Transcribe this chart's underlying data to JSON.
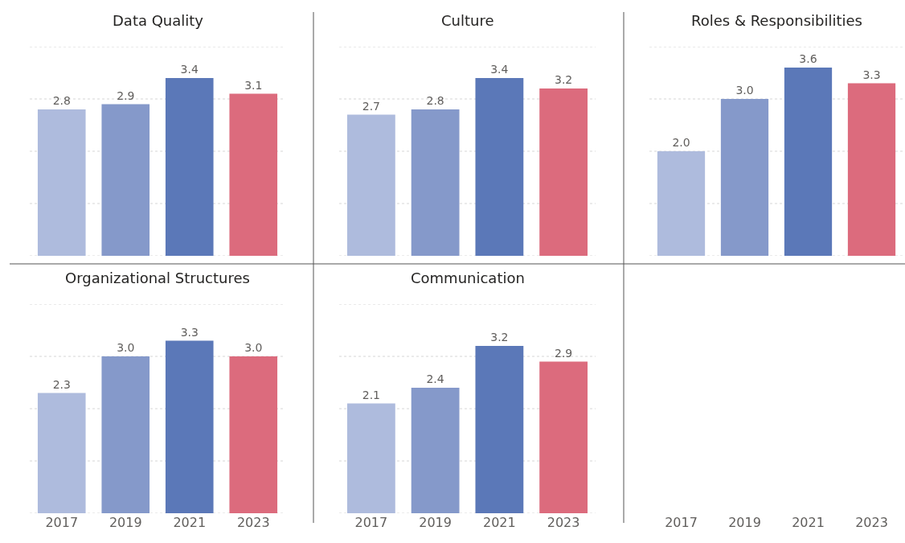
{
  "chart_data": [
    {
      "type": "bar",
      "title": "Data Quality",
      "categories": [
        "2017",
        "2019",
        "2021",
        "2023"
      ],
      "values": [
        2.8,
        2.9,
        3.4,
        3.1
      ],
      "value_labels": [
        "2.8",
        "2.9",
        "3.4",
        "3.1"
      ],
      "colors": [
        "#aebbdd",
        "#8599ca",
        "#5b78b8",
        "#dc6b7d"
      ],
      "ylim": [
        0,
        4
      ],
      "yticks": [
        {
          "value": 0,
          "label": null
        },
        {
          "value": 1,
          "label": null
        },
        {
          "value": 2,
          "label": null
        },
        {
          "value": 3,
          "label": null
        },
        {
          "value": 4,
          "label": null
        }
      ],
      "grid": "y",
      "tick_labels": false
    },
    {
      "type": "bar",
      "title": "Culture",
      "categories": [
        "2017",
        "2019",
        "2021",
        "2023"
      ],
      "values": [
        2.7,
        2.8,
        3.4,
        3.2
      ],
      "value_labels": [
        "2.7",
        "2.8",
        "3.4",
        "3.2"
      ],
      "colors": [
        "#aebbdd",
        "#8599ca",
        "#5b78b8",
        "#dc6b7d"
      ],
      "ylim": [
        0,
        4
      ],
      "yticks": [
        {
          "value": 0,
          "label": null
        },
        {
          "value": 1,
          "label": null
        },
        {
          "value": 2,
          "label": null
        },
        {
          "value": 3,
          "label": null
        },
        {
          "value": 4,
          "label": null
        }
      ],
      "grid": "y",
      "tick_labels": false
    },
    {
      "type": "bar",
      "title": "Roles & Responsibilities",
      "categories": [
        "2017",
        "2019",
        "2021",
        "2023"
      ],
      "values": [
        2.0,
        3.0,
        3.6,
        3.3
      ],
      "value_labels": [
        "2.0",
        "3.0",
        "3.6",
        "3.3"
      ],
      "colors": [
        "#aebbdd",
        "#8599ca",
        "#5b78b8",
        "#dc6b7d"
      ],
      "ylim": [
        0,
        4
      ],
      "yticks": [
        {
          "value": 0,
          "label": null
        },
        {
          "value": 1,
          "label": null
        },
        {
          "value": 2,
          "label": null
        },
        {
          "value": 3,
          "label": null
        },
        {
          "value": 4,
          "label": null
        }
      ],
      "grid": "y",
      "tick_labels": "x"
    },
    {
      "type": "bar",
      "title": "Organizational Structures",
      "categories": [
        "2017",
        "2019",
        "2021",
        "2023"
      ],
      "values": [
        2.3,
        3.0,
        3.3,
        3.0
      ],
      "value_labels": [
        "2.3",
        "3.0",
        "3.3",
        "3.0"
      ],
      "colors": [
        "#aebbdd",
        "#8599ca",
        "#5b78b8",
        "#dc6b7d"
      ],
      "ylim": [
        0,
        4
      ],
      "yticks": [
        {
          "value": 0,
          "label": null
        },
        {
          "value": 1,
          "label": null
        },
        {
          "value": 2,
          "label": null
        },
        {
          "value": 3,
          "label": null
        },
        {
          "value": 4,
          "label": null
        }
      ],
      "grid": "y",
      "tick_labels": "x"
    },
    {
      "type": "bar",
      "title": "Communication",
      "categories": [
        "2017",
        "2019",
        "2021",
        "2023"
      ],
      "values": [
        2.1,
        2.4,
        3.2,
        2.9
      ],
      "value_labels": [
        "2.1",
        "2.4",
        "3.2",
        "2.9"
      ],
      "colors": [
        "#aebbdd",
        "#8599ca",
        "#5b78b8",
        "#dc6b7d"
      ],
      "ylim": [
        0,
        4
      ],
      "yticks": [
        {
          "value": 0,
          "label": null
        },
        {
          "value": 1,
          "label": null
        },
        {
          "value": 2,
          "label": null
        },
        {
          "value": 3,
          "label": null
        },
        {
          "value": 4,
          "label": null
        }
      ],
      "grid": "y",
      "tick_labels": "x"
    }
  ]
}
